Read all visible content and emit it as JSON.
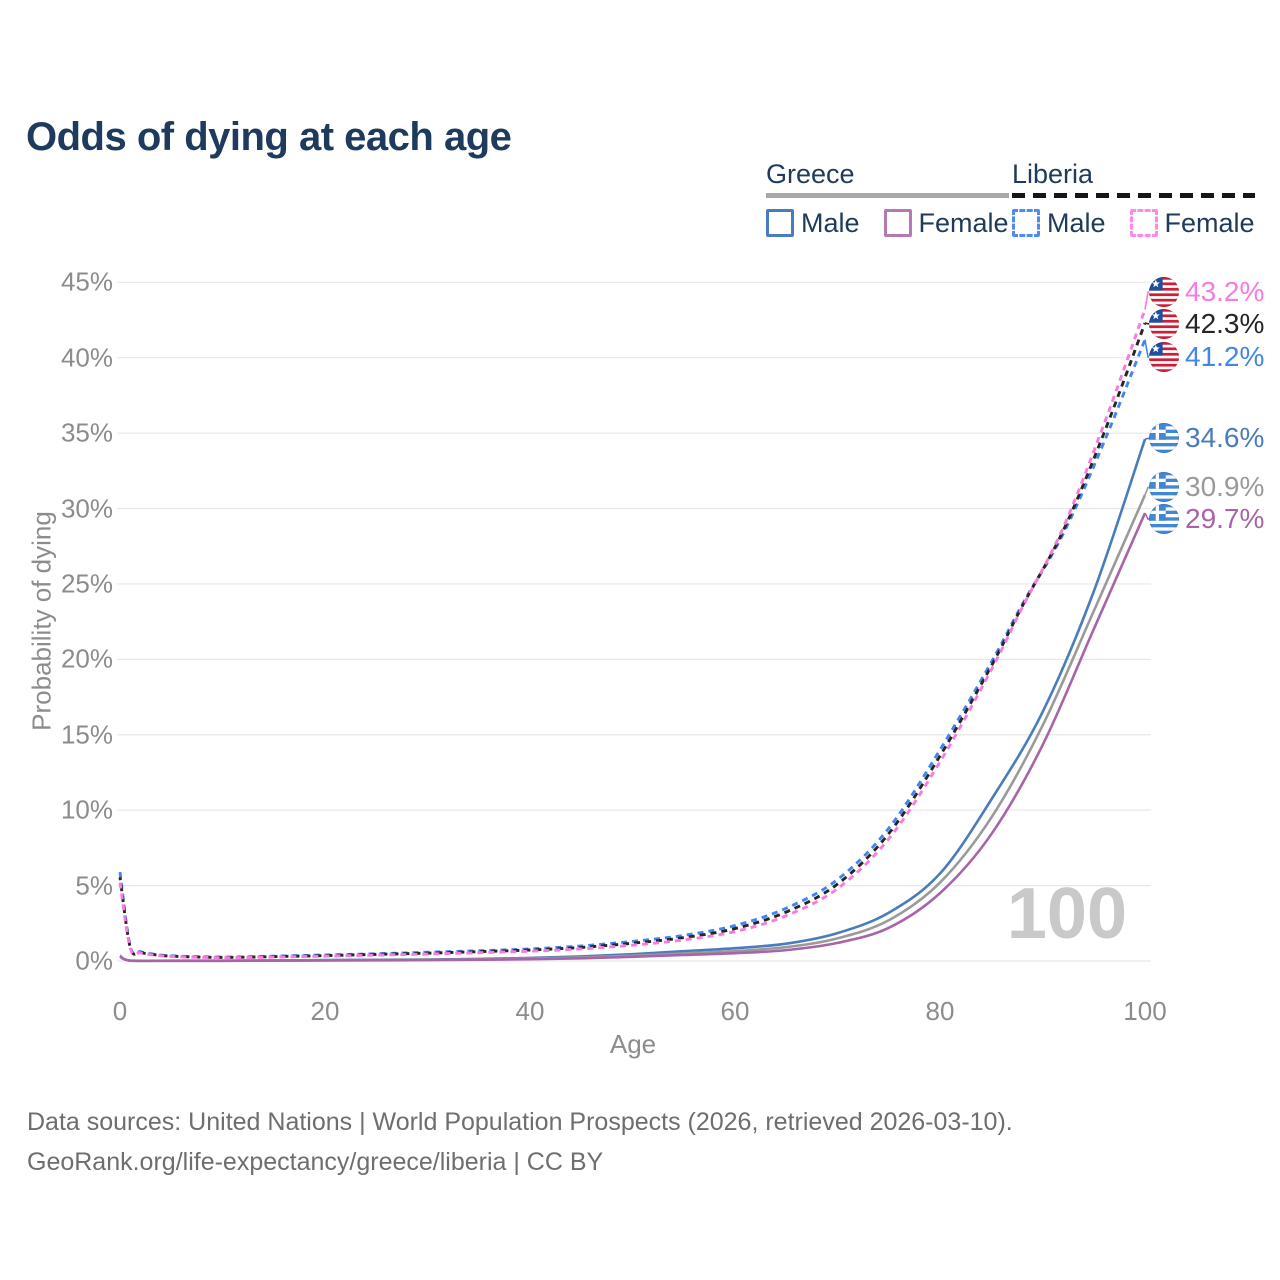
{
  "footer": {
    "line1": "Data sources: United Nations | World Population Prospects (2026, retrieved 2026-03-10).",
    "line2": "GeoRank.org/life-expectancy/greece/liberia | CC BY"
  },
  "legend": {
    "groups": [
      {
        "title": "Greece",
        "line_style": "solid",
        "underline_color": "#a8a8a8",
        "items": [
          {
            "label": "Male",
            "color": "#4a7cbd"
          },
          {
            "label": "Female",
            "color": "#b678b5"
          }
        ]
      },
      {
        "title": "Liberia",
        "line_style": "dashed",
        "underline_color": "#161616",
        "items": [
          {
            "label": "Male",
            "color": "#4d8bf0"
          },
          {
            "label": "Female",
            "color": "#ff8ae6"
          }
        ]
      }
    ]
  },
  "chart_data": {
    "type": "line",
    "title": "Odds of dying at each age",
    "xlabel": "Age",
    "ylabel": "Probability of dying",
    "xlim": [
      0,
      100
    ],
    "ylim": [
      0,
      45
    ],
    "xticks": [
      0,
      20,
      40,
      60,
      80,
      100
    ],
    "yticks": [
      "0%",
      "5%",
      "10%",
      "15%",
      "20%",
      "25%",
      "30%",
      "35%",
      "40%",
      "45%"
    ],
    "ytick_values": [
      0,
      5,
      10,
      15,
      20,
      25,
      30,
      35,
      40,
      45
    ],
    "grid": "horizontal",
    "gridline_color": "#e8e8e8",
    "watermark": "100",
    "series": [
      {
        "name": "Greece Male",
        "country": "greece",
        "group": "Male",
        "color": "#4a7cbd",
        "dash": false,
        "end_label": {
          "text": "34.6%",
          "value": 34.6,
          "label_y_pct": 34.65
        },
        "points": [
          [
            0,
            0.35
          ],
          [
            1,
            0.03
          ],
          [
            5,
            0.02
          ],
          [
            10,
            0.02
          ],
          [
            15,
            0.04
          ],
          [
            20,
            0.06
          ],
          [
            25,
            0.08
          ],
          [
            30,
            0.1
          ],
          [
            35,
            0.14
          ],
          [
            40,
            0.2
          ],
          [
            45,
            0.3
          ],
          [
            50,
            0.45
          ],
          [
            55,
            0.65
          ],
          [
            60,
            0.85
          ],
          [
            65,
            1.15
          ],
          [
            70,
            1.85
          ],
          [
            75,
            3.2
          ],
          [
            80,
            5.8
          ],
          [
            85,
            10.7
          ],
          [
            90,
            16.5
          ],
          [
            95,
            24.5
          ],
          [
            100,
            34.6
          ]
        ]
      },
      {
        "name": "Greece Total",
        "country": "greece",
        "group": "Total",
        "color": "#9a9a9a",
        "dash": false,
        "end_label": {
          "text": "30.9%",
          "value": 30.9,
          "label_y_pct": 31.4
        },
        "points": [
          [
            0,
            0.33
          ],
          [
            1,
            0.025
          ],
          [
            5,
            0.015
          ],
          [
            10,
            0.015
          ],
          [
            15,
            0.03
          ],
          [
            20,
            0.045
          ],
          [
            25,
            0.06
          ],
          [
            30,
            0.08
          ],
          [
            35,
            0.11
          ],
          [
            40,
            0.16
          ],
          [
            45,
            0.24
          ],
          [
            50,
            0.35
          ],
          [
            55,
            0.5
          ],
          [
            60,
            0.66
          ],
          [
            65,
            0.92
          ],
          [
            70,
            1.5
          ],
          [
            75,
            2.7
          ],
          [
            80,
            5.2
          ],
          [
            85,
            9.5
          ],
          [
            90,
            15.6
          ],
          [
            95,
            23.2
          ],
          [
            100,
            30.9
          ]
        ]
      },
      {
        "name": "Greece Female",
        "country": "greece",
        "group": "Female",
        "color": "#a864a8",
        "dash": false,
        "end_label": {
          "text": "29.7%",
          "value": 29.7,
          "label_y_pct": 29.3
        },
        "points": [
          [
            0,
            0.3
          ],
          [
            1,
            0.02
          ],
          [
            5,
            0.012
          ],
          [
            10,
            0.012
          ],
          [
            15,
            0.025
          ],
          [
            20,
            0.035
          ],
          [
            25,
            0.045
          ],
          [
            30,
            0.06
          ],
          [
            35,
            0.085
          ],
          [
            40,
            0.12
          ],
          [
            45,
            0.18
          ],
          [
            50,
            0.28
          ],
          [
            55,
            0.4
          ],
          [
            60,
            0.52
          ],
          [
            65,
            0.72
          ],
          [
            70,
            1.2
          ],
          [
            75,
            2.2
          ],
          [
            80,
            4.5
          ],
          [
            85,
            8.4
          ],
          [
            90,
            14.3
          ],
          [
            95,
            22.0
          ],
          [
            100,
            29.7
          ]
        ]
      },
      {
        "name": "Liberia Male",
        "country": "liberia",
        "group": "Male",
        "color": "#4285ec",
        "dash": true,
        "end_label": {
          "text": "41.2%",
          "value": 41.2,
          "label_y_pct": 40.05
        },
        "points": [
          [
            0,
            5.9
          ],
          [
            1,
            0.95
          ],
          [
            2,
            0.62
          ],
          [
            3,
            0.48
          ],
          [
            5,
            0.34
          ],
          [
            10,
            0.26
          ],
          [
            15,
            0.32
          ],
          [
            20,
            0.4
          ],
          [
            25,
            0.48
          ],
          [
            30,
            0.58
          ],
          [
            35,
            0.68
          ],
          [
            40,
            0.8
          ],
          [
            45,
            1.0
          ],
          [
            50,
            1.3
          ],
          [
            55,
            1.7
          ],
          [
            60,
            2.35
          ],
          [
            65,
            3.5
          ],
          [
            70,
            5.4
          ],
          [
            75,
            8.8
          ],
          [
            80,
            14.0
          ],
          [
            85,
            19.8
          ],
          [
            88,
            23.6
          ],
          [
            92,
            28.3
          ],
          [
            96,
            34.4
          ],
          [
            100,
            41.2
          ]
        ]
      },
      {
        "name": "Liberia Total",
        "country": "liberia",
        "group": "Total",
        "color": "#262626",
        "dash": true,
        "end_label": {
          "text": "42.3%",
          "value": 42.3,
          "label_y_pct": 42.25
        },
        "points": [
          [
            0,
            5.55
          ],
          [
            1,
            0.9
          ],
          [
            2,
            0.58
          ],
          [
            3,
            0.45
          ],
          [
            5,
            0.32
          ],
          [
            10,
            0.24
          ],
          [
            15,
            0.29
          ],
          [
            20,
            0.36
          ],
          [
            25,
            0.44
          ],
          [
            30,
            0.52
          ],
          [
            35,
            0.62
          ],
          [
            40,
            0.73
          ],
          [
            45,
            0.9
          ],
          [
            50,
            1.18
          ],
          [
            55,
            1.55
          ],
          [
            60,
            2.15
          ],
          [
            65,
            3.25
          ],
          [
            70,
            5.1
          ],
          [
            75,
            8.45
          ],
          [
            80,
            13.6
          ],
          [
            85,
            19.55
          ],
          [
            88,
            23.5
          ],
          [
            92,
            28.5
          ],
          [
            96,
            35.0
          ],
          [
            100,
            42.3
          ]
        ]
      },
      {
        "name": "Liberia Female",
        "country": "liberia",
        "group": "Female",
        "color": "#f97ae0",
        "dash": true,
        "end_label": {
          "text": "43.2%",
          "value": 43.2,
          "label_y_pct": 44.35
        },
        "points": [
          [
            0,
            5.2
          ],
          [
            1,
            0.85
          ],
          [
            2,
            0.55
          ],
          [
            3,
            0.42
          ],
          [
            5,
            0.3
          ],
          [
            10,
            0.22
          ],
          [
            15,
            0.26
          ],
          [
            20,
            0.32
          ],
          [
            25,
            0.39
          ],
          [
            30,
            0.46
          ],
          [
            35,
            0.55
          ],
          [
            40,
            0.65
          ],
          [
            45,
            0.8
          ],
          [
            50,
            1.05
          ],
          [
            55,
            1.4
          ],
          [
            60,
            1.95
          ],
          [
            65,
            3.0
          ],
          [
            70,
            4.8
          ],
          [
            75,
            8.1
          ],
          [
            80,
            13.2
          ],
          [
            85,
            19.3
          ],
          [
            88,
            23.4
          ],
          [
            92,
            28.7
          ],
          [
            96,
            35.6
          ],
          [
            100,
            43.2
          ]
        ]
      }
    ]
  }
}
